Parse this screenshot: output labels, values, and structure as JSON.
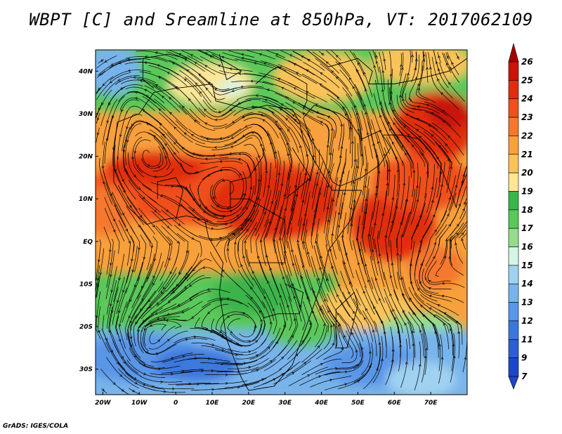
{
  "title": "WBPT [C] and Sreamline at 850hPa, VT: 2017062109",
  "credit": "GrADS: IGES/COLA",
  "map": {
    "projection": "latlon",
    "lon_range": [
      -22,
      80
    ],
    "lat_range": [
      -36,
      45
    ],
    "lat_ticks": [
      {
        "value": 40,
        "label": "40N"
      },
      {
        "value": 30,
        "label": "30N"
      },
      {
        "value": 20,
        "label": "20N"
      },
      {
        "value": 10,
        "label": "10N"
      },
      {
        "value": 0,
        "label": "EQ"
      },
      {
        "value": -10,
        "label": "10S"
      },
      {
        "value": -20,
        "label": "20S"
      },
      {
        "value": -30,
        "label": "30S"
      }
    ],
    "lon_ticks": [
      {
        "value": -20,
        "label": "20W"
      },
      {
        "value": -10,
        "label": "10W"
      },
      {
        "value": 0,
        "label": "0"
      },
      {
        "value": 10,
        "label": "10E"
      },
      {
        "value": 20,
        "label": "20E"
      },
      {
        "value": 30,
        "label": "30E"
      },
      {
        "value": 40,
        "label": "40E"
      },
      {
        "value": 50,
        "label": "50E"
      },
      {
        "value": 60,
        "label": "60E"
      },
      {
        "value": 70,
        "label": "70E"
      }
    ]
  },
  "colorbar": {
    "levels": [
      {
        "label": "26",
        "color": "#a50000"
      },
      {
        "label": "25",
        "color": "#c8140a"
      },
      {
        "label": "24",
        "color": "#e02d10"
      },
      {
        "label": "23",
        "color": "#f0501e"
      },
      {
        "label": "22",
        "color": "#f5782d"
      },
      {
        "label": "21",
        "color": "#f8a03c"
      },
      {
        "label": "20",
        "color": "#fac35a"
      },
      {
        "label": "19",
        "color": "#fde696"
      },
      {
        "label": "18",
        "color": "#3cb44b"
      },
      {
        "label": "17",
        "color": "#5ac85a"
      },
      {
        "label": "16",
        "color": "#96dc8c"
      },
      {
        "label": "15",
        "color": "#d2f5e6"
      },
      {
        "label": "14",
        "color": "#a0d2f0"
      },
      {
        "label": "13",
        "color": "#78b4eb"
      },
      {
        "label": "12",
        "color": "#5a96e6"
      },
      {
        "label": "11",
        "color": "#3c78dc"
      },
      {
        "label": "9",
        "color": "#2d5fd2"
      },
      {
        "label": "7",
        "color": "#1e46c8"
      }
    ],
    "top_arrow_color": "#a50000",
    "bottom_arrow_color": "#1e46c8"
  }
}
